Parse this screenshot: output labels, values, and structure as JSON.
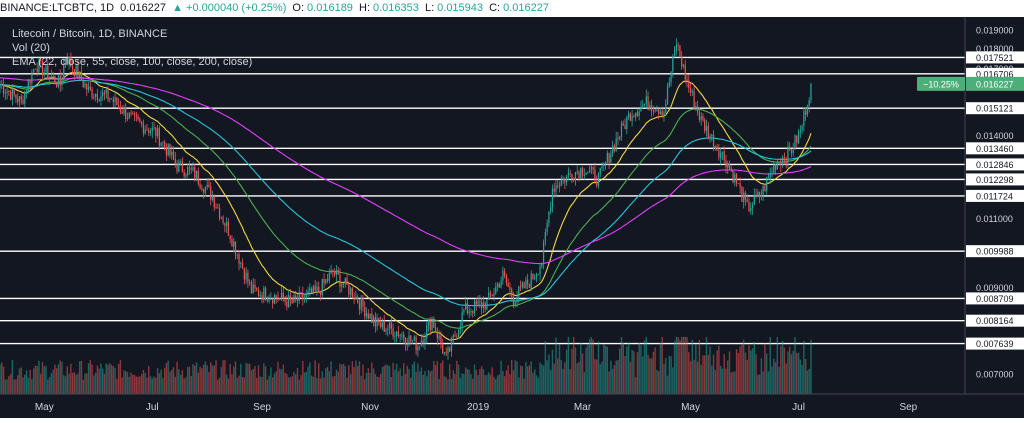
{
  "header": {
    "symbol": "BINANCE:LTCBTC, 1D",
    "last": "0.016227",
    "change": "▲ +0.000040 (+0.25%)",
    "open_label": "O:",
    "open": "0.016189",
    "high_label": "H:",
    "high": "0.016353",
    "low_label": "L:",
    "low": "0.015943",
    "close_label": "C:",
    "close": "0.016227"
  },
  "legend": {
    "title": "Litecoin / Bitcoin, 1D, BINANCE",
    "vol": "Vol (20)",
    "ema": "EMA (22, close, 55, close, 100, close, 200, close)"
  },
  "colors": {
    "background": "#131722",
    "up": "#26a69a",
    "down": "#ef5350",
    "ema22": "#f5d742",
    "ema55": "#4caf50",
    "ema100": "#26c6da",
    "ema200": "#e040fb",
    "badge": "#4caf7a",
    "hline": "#ffffff"
  },
  "chart_data": {
    "type": "candlestick",
    "yscale": "log",
    "ylim": [
      0.0066,
      0.0197
    ],
    "x_ticks": [
      {
        "label": "May",
        "day": 25
      },
      {
        "label": "Jul",
        "day": 86
      },
      {
        "label": "Sep",
        "day": 148
      },
      {
        "label": "Nov",
        "day": 209
      },
      {
        "label": "2019",
        "day": 270
      },
      {
        "label": "Mar",
        "day": 329
      },
      {
        "label": "May",
        "day": 390
      },
      {
        "label": "Jul",
        "day": 451
      },
      {
        "label": "Sep",
        "day": 513
      }
    ],
    "x_range_days": [
      0,
      545
    ],
    "y_ticks": [
      0.007,
      0.009,
      0.011,
      0.014,
      0.017,
      0.018,
      0.019
    ],
    "y_tick_labels": [
      "0.007000",
      "0.009000",
      "0.011000",
      "0.014000",
      "0.017000",
      "0.018000",
      "0.019000"
    ],
    "levels": [
      {
        "value": 0.017521,
        "label": "0.017521"
      },
      {
        "value": 0.016706,
        "label": "0.016706"
      },
      {
        "value": 0.015121,
        "label": "0.015121"
      },
      {
        "value": 0.01346,
        "label": "0.013460"
      },
      {
        "value": 0.012846,
        "label": "0.012846"
      },
      {
        "value": 0.012298,
        "label": "0.012298"
      },
      {
        "value": 0.011724,
        "label": "0.011724"
      },
      {
        "value": 0.009988,
        "label": "0.009988"
      },
      {
        "value": 0.008709,
        "label": "0.008709"
      },
      {
        "value": 0.008164,
        "label": "0.008164"
      },
      {
        "value": 0.007639,
        "label": "0.007639"
      }
    ],
    "last_price": {
      "value": 0.016227,
      "label": "0.016227",
      "change": "−10.25%"
    },
    "anchors": [
      {
        "day": 0,
        "price": 0.0162
      },
      {
        "day": 12,
        "price": 0.0154
      },
      {
        "day": 20,
        "price": 0.0172
      },
      {
        "day": 34,
        "price": 0.0162
      },
      {
        "day": 37,
        "price": 0.0176
      },
      {
        "day": 50,
        "price": 0.0159
      },
      {
        "day": 62,
        "price": 0.0156
      },
      {
        "day": 75,
        "price": 0.0146
      },
      {
        "day": 88,
        "price": 0.0141
      },
      {
        "day": 100,
        "price": 0.0128
      },
      {
        "day": 110,
        "price": 0.0125
      },
      {
        "day": 120,
        "price": 0.0117
      },
      {
        "day": 130,
        "price": 0.0105
      },
      {
        "day": 142,
        "price": 0.0089
      },
      {
        "day": 152,
        "price": 0.0088
      },
      {
        "day": 165,
        "price": 0.0086
      },
      {
        "day": 180,
        "price": 0.0089
      },
      {
        "day": 188,
        "price": 0.0094
      },
      {
        "day": 200,
        "price": 0.0088
      },
      {
        "day": 212,
        "price": 0.0081
      },
      {
        "day": 225,
        "price": 0.0079
      },
      {
        "day": 236,
        "price": 0.0076
      },
      {
        "day": 244,
        "price": 0.0082
      },
      {
        "day": 252,
        "price": 0.0073
      },
      {
        "day": 262,
        "price": 0.0084
      },
      {
        "day": 275,
        "price": 0.0086
      },
      {
        "day": 284,
        "price": 0.0093
      },
      {
        "day": 290,
        "price": 0.0087
      },
      {
        "day": 300,
        "price": 0.0092
      },
      {
        "day": 306,
        "price": 0.0097
      },
      {
        "day": 312,
        "price": 0.012
      },
      {
        "day": 322,
        "price": 0.0125
      },
      {
        "day": 330,
        "price": 0.0127
      },
      {
        "day": 338,
        "price": 0.0123
      },
      {
        "day": 346,
        "price": 0.0135
      },
      {
        "day": 356,
        "price": 0.0149
      },
      {
        "day": 366,
        "price": 0.0154
      },
      {
        "day": 375,
        "price": 0.015
      },
      {
        "day": 382,
        "price": 0.0183
      },
      {
        "day": 388,
        "price": 0.0163
      },
      {
        "day": 396,
        "price": 0.0146
      },
      {
        "day": 404,
        "price": 0.0136
      },
      {
        "day": 410,
        "price": 0.013
      },
      {
        "day": 416,
        "price": 0.0122
      },
      {
        "day": 422,
        "price": 0.0113
      },
      {
        "day": 430,
        "price": 0.0118
      },
      {
        "day": 438,
        "price": 0.0129
      },
      {
        "day": 446,
        "price": 0.0133
      },
      {
        "day": 452,
        "price": 0.0141
      },
      {
        "day": 458,
        "price": 0.0162
      }
    ],
    "ema_series": [
      {
        "name": "EMA 22",
        "period": 22
      },
      {
        "name": "EMA 55",
        "period": 55
      },
      {
        "name": "EMA 100",
        "period": 100
      },
      {
        "name": "EMA 200",
        "period": 200
      }
    ]
  }
}
